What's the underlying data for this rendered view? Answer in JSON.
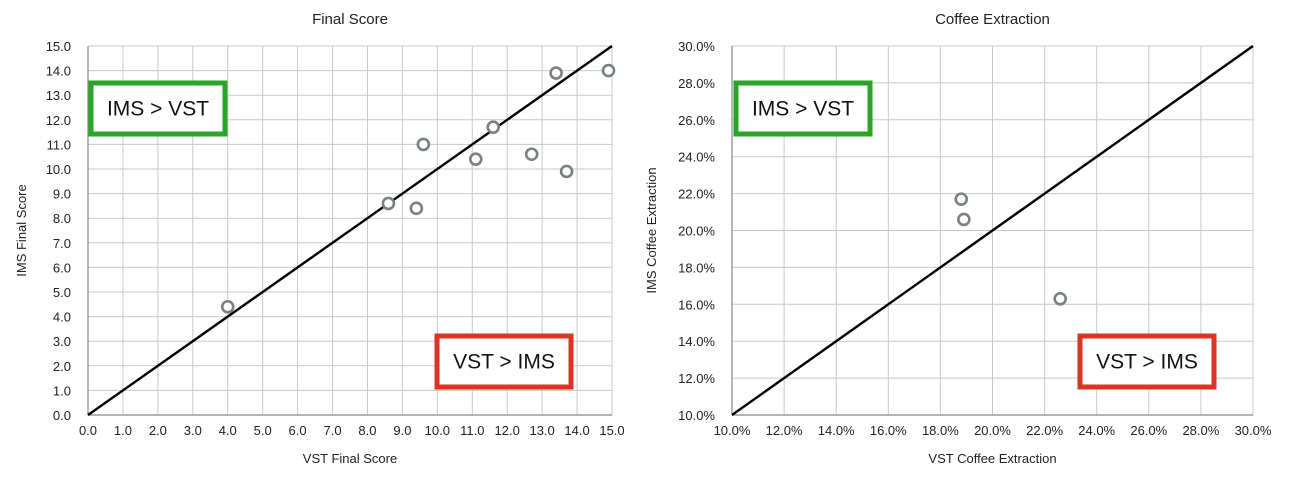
{
  "chart_data": [
    {
      "type": "scatter",
      "title": "Final Score",
      "xlabel": "VST Final Score",
      "ylabel": "IMS Final Score",
      "xlim": [
        0,
        15
      ],
      "ylim": [
        0,
        15
      ],
      "tick_step": 1,
      "tick_format": "fixed1",
      "grid": true,
      "reference_line": [
        [
          0,
          0
        ],
        [
          15,
          15
        ]
      ],
      "annotations": [
        {
          "text": "IMS > VST",
          "color": "#2aa52a",
          "position": "upper-left"
        },
        {
          "text": "VST > IMS",
          "color": "#dd3322",
          "position": "lower-right"
        }
      ],
      "points": [
        {
          "x": 4.0,
          "y": 4.4
        },
        {
          "x": 8.6,
          "y": 8.6
        },
        {
          "x": 9.4,
          "y": 8.4
        },
        {
          "x": 9.6,
          "y": 11.0
        },
        {
          "x": 11.1,
          "y": 10.4
        },
        {
          "x": 11.6,
          "y": 11.7
        },
        {
          "x": 12.7,
          "y": 10.6
        },
        {
          "x": 13.4,
          "y": 13.9
        },
        {
          "x": 13.7,
          "y": 9.9
        },
        {
          "x": 14.9,
          "y": 14.0
        }
      ]
    },
    {
      "type": "scatter",
      "title": "Coffee Extraction",
      "xlabel": "VST Coffee Extraction",
      "ylabel": "IMS Coffee Extraction",
      "xlim": [
        10,
        30
      ],
      "ylim": [
        10,
        30
      ],
      "x_tick_step": 2,
      "y_tick_step": 2,
      "tick_format": "percent1",
      "grid": true,
      "reference_line": [
        [
          10,
          10
        ],
        [
          30,
          30
        ]
      ],
      "annotations": [
        {
          "text": "IMS > VST",
          "color": "#2aa52a",
          "position": "upper-left"
        },
        {
          "text": "VST > IMS",
          "color": "#dd3322",
          "position": "lower-right"
        }
      ],
      "points": [
        {
          "x": 18.8,
          "y": 21.7
        },
        {
          "x": 18.9,
          "y": 20.6
        },
        {
          "x": 22.6,
          "y": 16.3
        }
      ]
    }
  ]
}
